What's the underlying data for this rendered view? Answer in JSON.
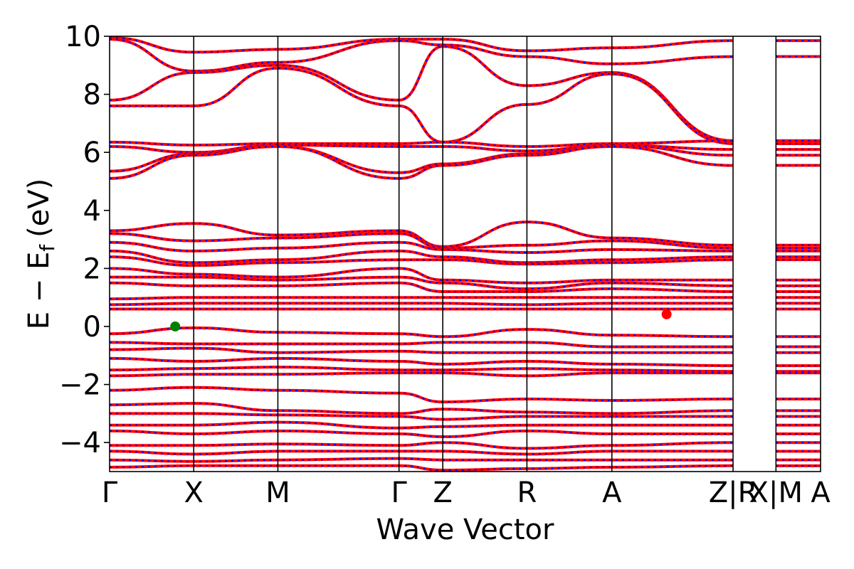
{
  "chart_data": {
    "type": "line",
    "title": "",
    "xlabel": "Wave Vector",
    "ylabel": "E − E",
    "ylabel_subscript": "f",
    "ylabel_unit": "(eV)",
    "ylim": [
      -5,
      10
    ],
    "yticks": [
      -4,
      -2,
      0,
      2,
      4,
      6,
      8,
      10
    ],
    "ytick_labels": [
      "−4",
      "−2",
      "0",
      "2",
      "4",
      "6",
      "8",
      "10"
    ],
    "xlim": [
      0,
      8.45
    ],
    "high_symmetry_points": [
      {
        "label": "Γ",
        "x": 0.0
      },
      {
        "label": "X",
        "x": 1.0
      },
      {
        "label": "M",
        "x": 2.0
      },
      {
        "label": "Γ",
        "x": 3.44
      },
      {
        "label": "Z",
        "x": 3.96
      },
      {
        "label": "R",
        "x": 4.96
      },
      {
        "label": "A",
        "x": 5.97
      },
      {
        "label": "Z|R",
        "x": 7.41
      },
      {
        "label": "X|M",
        "x": 7.92
      },
      {
        "label": "A",
        "x": 8.45
      }
    ],
    "vbm": {
      "x": 0.78,
      "y": 0.0
    },
    "cbm": {
      "x": 6.62,
      "y": 0.42
    },
    "series": [
      {
        "values": [
          9.95,
          9.45,
          9.55,
          9.9,
          9.9,
          9.5,
          9.6,
          9.85
        ]
      },
      {
        "values": [
          9.9,
          8.8,
          9.1,
          9.85,
          9.7,
          9.3,
          9.05,
          9.3
        ]
      },
      {
        "values": [
          7.8,
          8.75,
          9.0,
          7.8,
          9.65,
          8.3,
          8.75,
          6.4
        ]
      },
      {
        "values": [
          7.6,
          7.6,
          8.9,
          7.6,
          6.35,
          7.65,
          8.7,
          6.3
        ]
      },
      {
        "values": [
          6.35,
          6.25,
          6.3,
          6.3,
          6.35,
          6.2,
          6.3,
          6.4
        ]
      },
      {
        "values": [
          6.2,
          6.0,
          6.25,
          6.2,
          6.2,
          6.05,
          6.25,
          6.1
        ]
      },
      {
        "values": [
          5.35,
          5.95,
          6.2,
          5.3,
          5.6,
          5.95,
          6.25,
          5.9
        ]
      },
      {
        "values": [
          5.1,
          5.9,
          6.2,
          5.1,
          5.55,
          5.9,
          6.2,
          5.55
        ]
      },
      {
        "values": [
          3.3,
          3.55,
          3.15,
          3.3,
          2.75,
          3.6,
          3.05,
          2.8
        ]
      },
      {
        "values": [
          3.2,
          2.95,
          3.05,
          3.2,
          2.7,
          2.8,
          2.95,
          2.7
        ]
      },
      {
        "values": [
          2.9,
          2.6,
          2.7,
          2.9,
          2.65,
          2.55,
          2.65,
          2.6
        ]
      },
      {
        "values": [
          2.6,
          2.2,
          2.3,
          2.6,
          2.4,
          2.2,
          2.3,
          2.4
        ]
      },
      {
        "values": [
          2.4,
          2.1,
          2.2,
          2.3,
          2.3,
          2.15,
          2.2,
          2.3
        ]
      },
      {
        "values": [
          2.0,
          1.8,
          1.7,
          2.0,
          1.6,
          1.5,
          1.6,
          1.6
        ]
      },
      {
        "values": [
          1.7,
          1.7,
          1.6,
          1.7,
          1.5,
          1.3,
          1.5,
          1.4
        ]
      },
      {
        "values": [
          1.5,
          1.4,
          1.4,
          1.5,
          1.2,
          1.2,
          1.3,
          1.2
        ]
      },
      {
        "values": [
          0.95,
          1.0,
          1.0,
          1.0,
          1.0,
          1.0,
          1.0,
          1.0
        ]
      },
      {
        "values": [
          0.75,
          0.8,
          0.8,
          0.8,
          0.8,
          0.75,
          0.8,
          0.8
        ]
      },
      {
        "values": [
          0.6,
          0.6,
          0.6,
          0.6,
          0.6,
          0.6,
          0.6,
          0.6
        ]
      },
      {
        "values": [
          -0.25,
          -0.05,
          -0.2,
          -0.25,
          -0.35,
          -0.1,
          -0.3,
          -0.35
        ]
      },
      {
        "values": [
          -0.55,
          -0.6,
          -0.6,
          -0.6,
          -0.55,
          -0.55,
          -0.7,
          -0.7
        ]
      },
      {
        "values": [
          -0.8,
          -0.75,
          -0.9,
          -0.85,
          -0.9,
          -0.9,
          -0.9,
          -0.9
        ]
      },
      {
        "values": [
          -1.1,
          -1.2,
          -1.1,
          -1.2,
          -1.3,
          -1.2,
          -1.3,
          -1.35
        ]
      },
      {
        "values": [
          -1.5,
          -1.45,
          -1.4,
          -1.5,
          -1.5,
          -1.45,
          -1.5,
          -1.55
        ]
      },
      {
        "values": [
          -1.7,
          -1.65,
          -1.65,
          -1.6,
          -1.6,
          -1.7,
          -1.6,
          -1.6
        ]
      },
      {
        "values": [
          -2.2,
          -2.1,
          -2.2,
          -2.3,
          -2.6,
          -2.5,
          -2.55,
          -2.5
        ]
      },
      {
        "values": [
          -2.7,
          -2.65,
          -2.9,
          -3.0,
          -2.85,
          -2.95,
          -3.0,
          -2.9
        ]
      },
      {
        "values": [
          -3.0,
          -3.0,
          -3.05,
          -3.1,
          -3.2,
          -3.1,
          -3.1,
          -3.1
        ]
      },
      {
        "values": [
          -3.4,
          -3.4,
          -3.3,
          -3.5,
          -3.45,
          -3.4,
          -3.4,
          -3.4
        ]
      },
      {
        "values": [
          -3.6,
          -3.7,
          -3.6,
          -3.7,
          -3.8,
          -3.6,
          -3.7,
          -3.7
        ]
      },
      {
        "values": [
          -4.1,
          -4.1,
          -4.05,
          -4.1,
          -4.0,
          -4.2,
          -4.1,
          -4.0
        ]
      },
      {
        "values": [
          -4.3,
          -4.4,
          -4.3,
          -4.3,
          -4.3,
          -4.4,
          -4.3,
          -4.3
        ]
      },
      {
        "values": [
          -4.6,
          -4.65,
          -4.6,
          -4.55,
          -4.6,
          -4.6,
          -4.6,
          -4.6
        ]
      },
      {
        "values": [
          -4.85,
          -4.8,
          -4.8,
          -4.8,
          -4.95,
          -4.9,
          -4.85,
          -4.8
        ]
      }
    ],
    "line_colors": {
      "dft": "#ff0000",
      "wannier": "#0000ff"
    },
    "marker_colors": {
      "vbm": "#008000",
      "cbm": "#ff0000"
    },
    "grid": false
  }
}
